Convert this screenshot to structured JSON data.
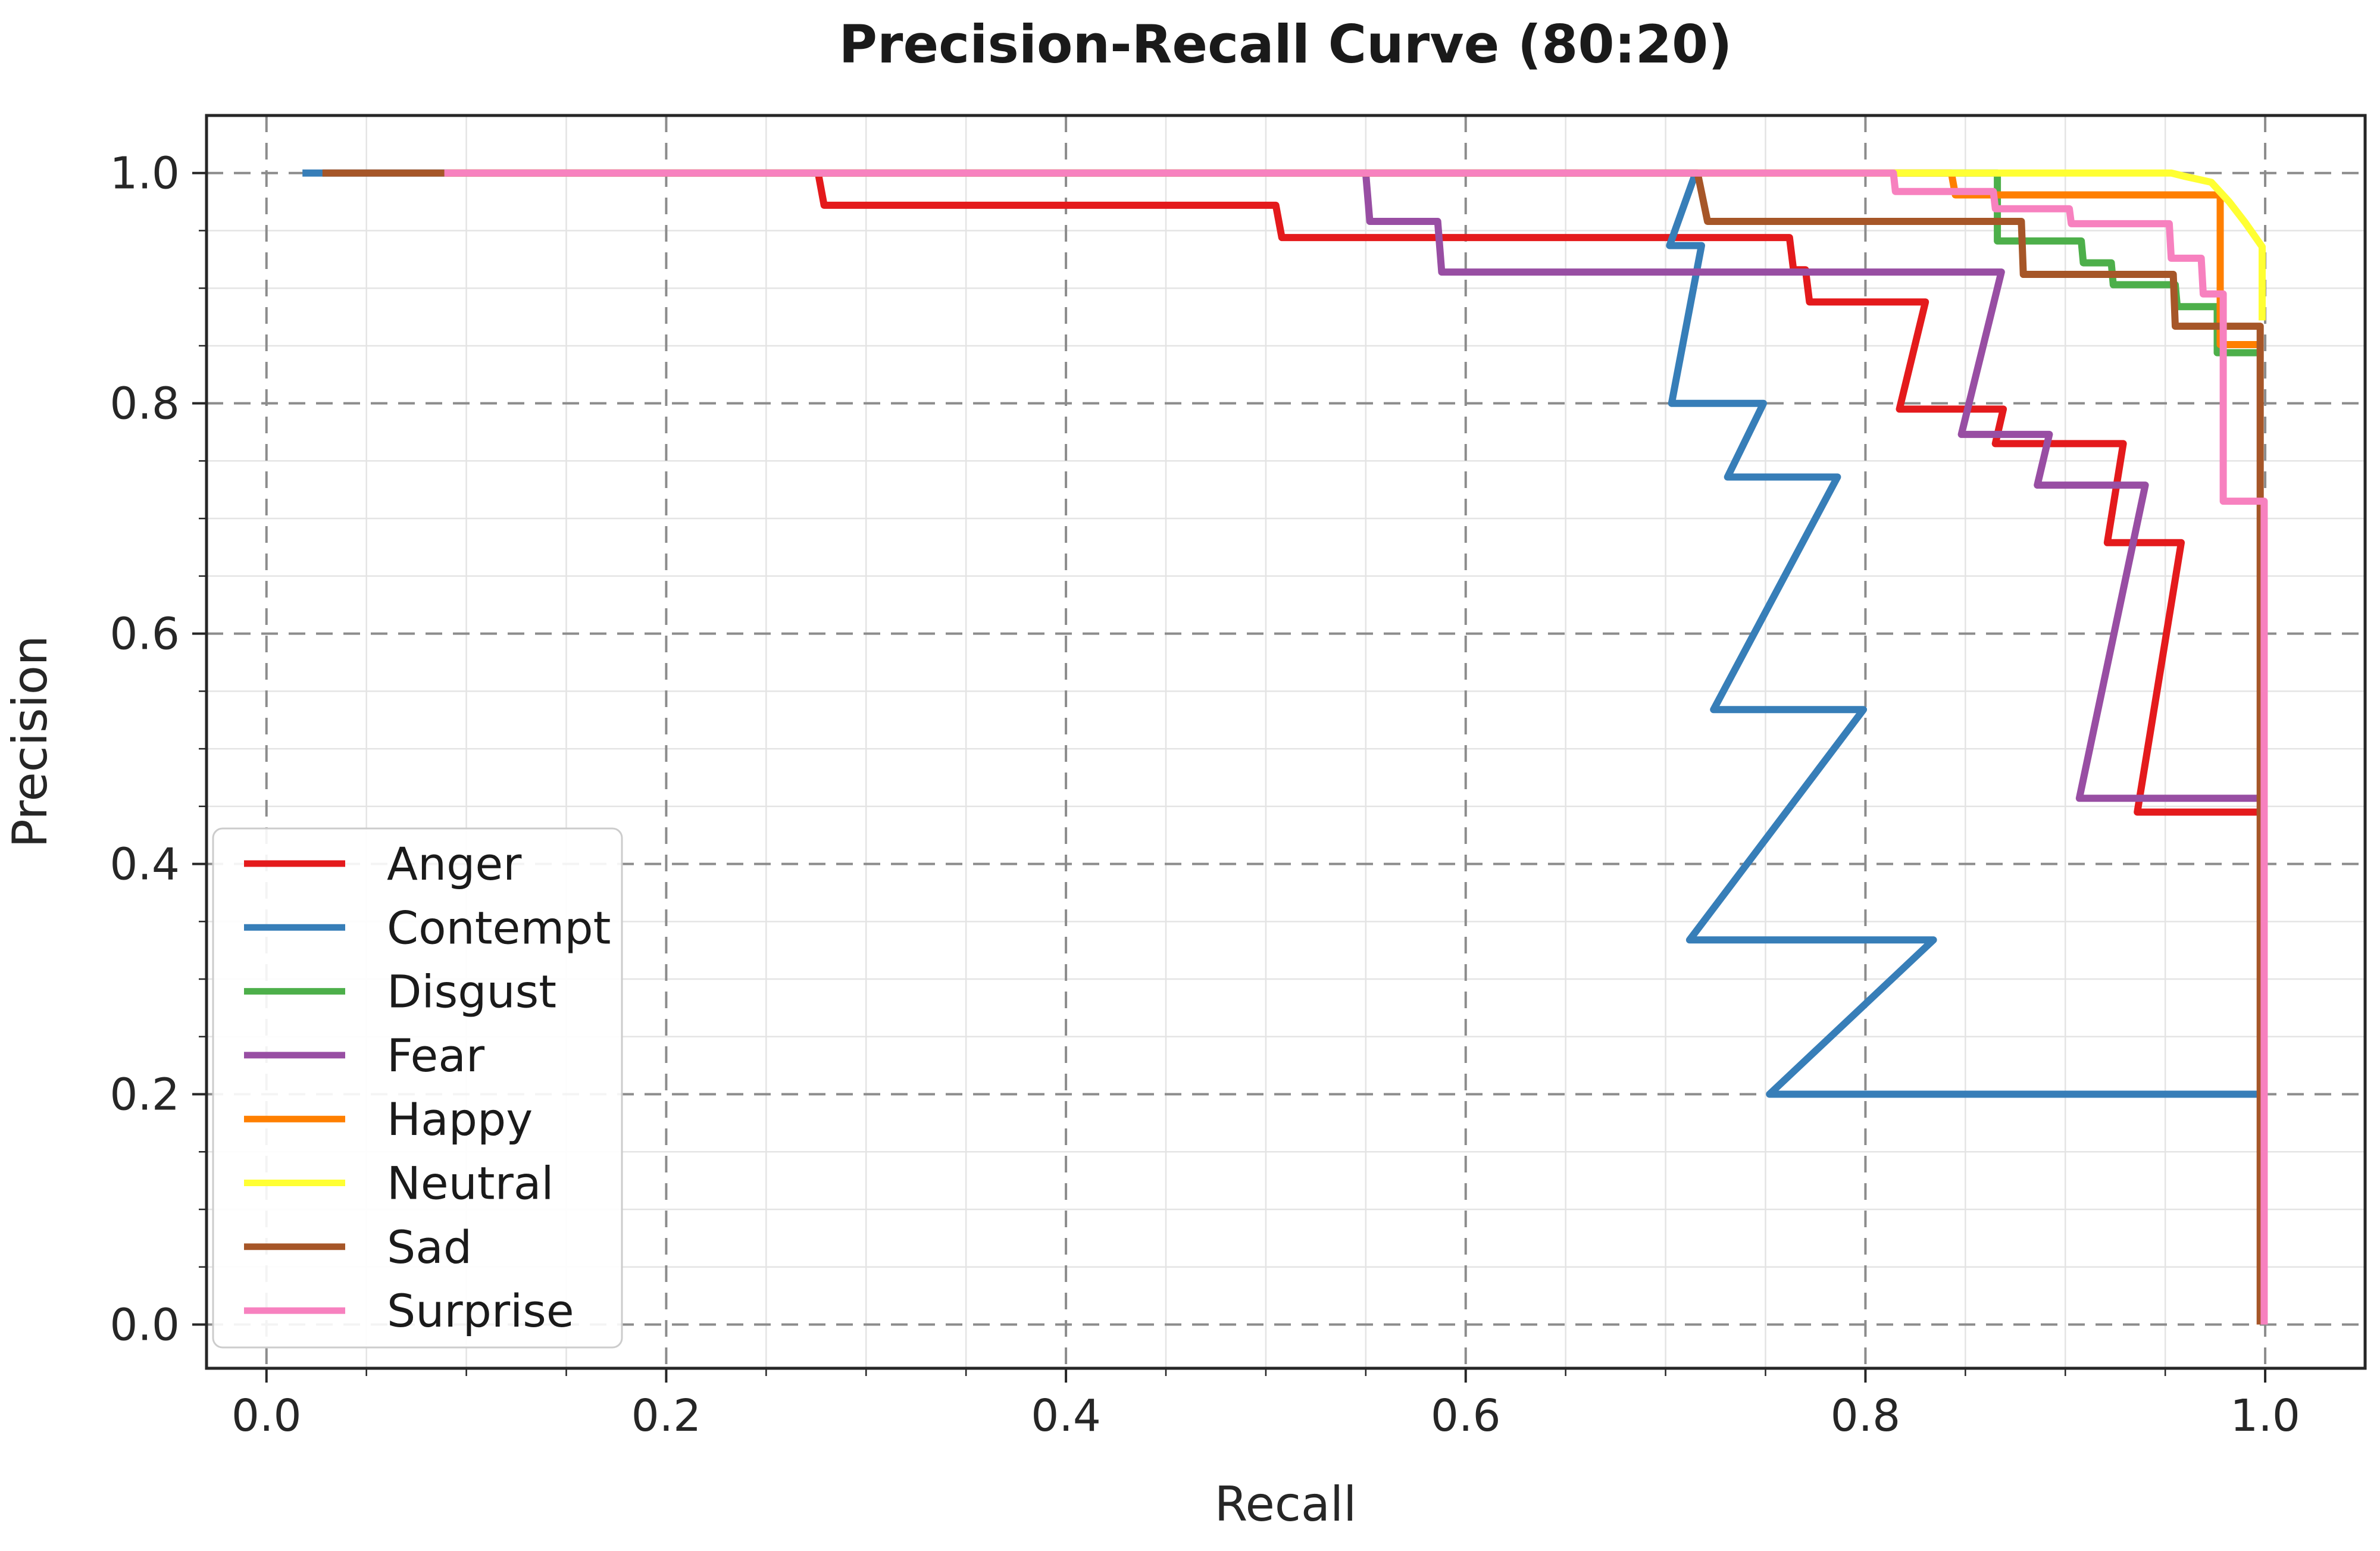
{
  "title": "Precision-Recall Curve (80:20)",
  "axes": {
    "xlabel": "Recall",
    "ylabel": "Precision",
    "x_tick_labels": [
      "0.0",
      "0.2",
      "0.4",
      "0.6",
      "0.8",
      "1.0"
    ],
    "x_tick_values": [
      0.0,
      0.2,
      0.4,
      0.6,
      0.8,
      1.0
    ],
    "y_tick_labels": [
      "0.0",
      "0.2",
      "0.4",
      "0.6",
      "0.8",
      "1.0"
    ],
    "y_tick_values": [
      0.0,
      0.2,
      0.4,
      0.6,
      0.8,
      1.0
    ]
  },
  "legend": {
    "position": "lower left",
    "entries": [
      "Anger",
      "Contempt",
      "Disgust",
      "Fear",
      "Happy",
      "Neutral",
      "Sad",
      "Surprise"
    ]
  },
  "style": {
    "grid_major_color": "#8c8c8c",
    "grid_minor_color": "#e4e4e4",
    "spine_color": "#262626",
    "legend_border_color": "#cccccc",
    "legend_bg_color": "rgba(255,255,255,0.9)"
  },
  "chart_data": {
    "type": "line",
    "title": "Precision-Recall Curve (80:20)",
    "xlabel": "Recall",
    "ylabel": "Precision",
    "xlim": [
      -0.03,
      1.05
    ],
    "ylim": [
      -0.038,
      1.05
    ],
    "grid": {
      "major_interval": 0.2,
      "minor_interval": 0.05,
      "major_style": "dashed",
      "minor_style": "solid"
    },
    "legend_position": "lower left",
    "series": [
      {
        "name": "Anger",
        "color": "#e41a1c",
        "points": [
          [
            0.09,
            1.0
          ],
          [
            0.276,
            1.0
          ],
          [
            0.279,
            0.972
          ],
          [
            0.505,
            0.972
          ],
          [
            0.508,
            0.944
          ],
          [
            0.762,
            0.944
          ],
          [
            0.764,
            0.916
          ],
          [
            0.77,
            0.916
          ],
          [
            0.772,
            0.888
          ],
          [
            0.83,
            0.888
          ],
          [
            0.817,
            0.795
          ],
          [
            0.869,
            0.795
          ],
          [
            0.865,
            0.765
          ],
          [
            0.929,
            0.765
          ],
          [
            0.921,
            0.679
          ],
          [
            0.958,
            0.679
          ],
          [
            0.936,
            0.445
          ],
          [
            0.999,
            0.445
          ]
        ]
      },
      {
        "name": "Contempt",
        "color": "#377eb8",
        "points": [
          [
            0.018,
            1.0
          ],
          [
            0.715,
            1.0
          ],
          [
            0.702,
            0.937
          ],
          [
            0.718,
            0.937
          ],
          [
            0.703,
            0.8
          ],
          [
            0.749,
            0.8
          ],
          [
            0.731,
            0.736
          ],
          [
            0.786,
            0.736
          ],
          [
            0.724,
            0.534
          ],
          [
            0.799,
            0.534
          ],
          [
            0.712,
            0.334
          ],
          [
            0.834,
            0.334
          ],
          [
            0.752,
            0.2
          ],
          [
            0.999,
            0.2
          ]
        ]
      },
      {
        "name": "Disgust",
        "color": "#4daf4a",
        "points": [
          [
            0.09,
            1.0
          ],
          [
            0.866,
            1.0
          ],
          [
            0.866,
            0.941
          ],
          [
            0.908,
            0.941
          ],
          [
            0.909,
            0.922
          ],
          [
            0.923,
            0.922
          ],
          [
            0.924,
            0.903
          ],
          [
            0.955,
            0.903
          ],
          [
            0.956,
            0.884
          ],
          [
            0.976,
            0.884
          ],
          [
            0.976,
            0.844
          ],
          [
            0.9975,
            0.844
          ]
        ]
      },
      {
        "name": "Fear",
        "color": "#984ea3",
        "points": [
          [
            0.09,
            1.0
          ],
          [
            0.55,
            1.0
          ],
          [
            0.552,
            0.958
          ],
          [
            0.586,
            0.958
          ],
          [
            0.588,
            0.914
          ],
          [
            0.868,
            0.914
          ],
          [
            0.848,
            0.773
          ],
          [
            0.892,
            0.773
          ],
          [
            0.886,
            0.729
          ],
          [
            0.94,
            0.729
          ],
          [
            0.907,
            0.457
          ],
          [
            0.999,
            0.457
          ]
        ]
      },
      {
        "name": "Happy",
        "color": "#ff7f00",
        "points": [
          [
            0.09,
            1.0
          ],
          [
            0.843,
            1.0
          ],
          [
            0.845,
            0.981
          ],
          [
            0.9775,
            0.981
          ],
          [
            0.9775,
            0.851
          ],
          [
            0.9975,
            0.851
          ]
        ]
      },
      {
        "name": "Neutral",
        "color": "#ffff33",
        "points": [
          [
            0.09,
            1.0
          ],
          [
            0.953,
            1.0
          ],
          [
            0.96,
            0.997
          ],
          [
            0.973,
            0.992
          ],
          [
            0.982,
            0.975
          ],
          [
            0.99,
            0.957
          ],
          [
            0.9985,
            0.936
          ],
          [
            0.9985,
            0.872
          ]
        ]
      },
      {
        "name": "Sad",
        "color": "#a65628",
        "points": [
          [
            0.028,
            1.0
          ],
          [
            0.716,
            1.0
          ],
          [
            0.721,
            0.958
          ],
          [
            0.878,
            0.958
          ],
          [
            0.879,
            0.912
          ],
          [
            0.954,
            0.912
          ],
          [
            0.955,
            0.867
          ],
          [
            0.9975,
            0.867
          ],
          [
            0.9975,
            0.0
          ]
        ]
      },
      {
        "name": "Surprise",
        "color": "#f781bf",
        "points": [
          [
            0.089,
            1.0
          ],
          [
            0.814,
            1.0
          ],
          [
            0.815,
            0.984
          ],
          [
            0.864,
            0.984
          ],
          [
            0.865,
            0.969
          ],
          [
            0.902,
            0.969
          ],
          [
            0.903,
            0.956
          ],
          [
            0.952,
            0.956
          ],
          [
            0.953,
            0.926
          ],
          [
            0.968,
            0.926
          ],
          [
            0.969,
            0.895
          ],
          [
            0.979,
            0.895
          ],
          [
            0.979,
            0.715
          ],
          [
            0.9995,
            0.715
          ],
          [
            0.9995,
            0.0
          ]
        ]
      }
    ]
  }
}
